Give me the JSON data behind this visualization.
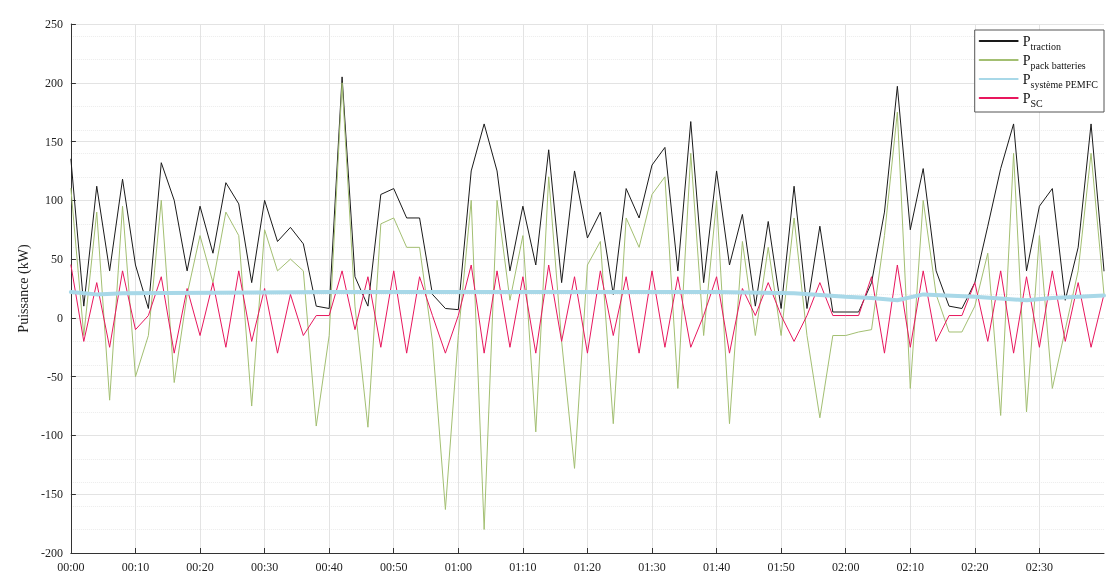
{
  "chart_data": {
    "type": "line",
    "ylabel": "Puissance (kW)",
    "x": [
      0,
      0.0333,
      0.0667,
      0.1,
      0.1333,
      0.1667,
      0.2,
      0.2333,
      0.2667,
      0.3,
      0.3333,
      0.3667,
      0.4,
      0.4333,
      0.4667,
      0.5,
      0.5333,
      0.5667,
      0.6,
      0.6333,
      0.6667,
      0.7,
      0.7333,
      0.7667,
      0.8,
      0.8333,
      0.8667,
      0.9,
      0.9333,
      0.9667,
      1,
      1.0333,
      1.0667,
      1.1,
      1.1333,
      1.1667,
      1.2,
      1.2333,
      1.2667,
      1.3,
      1.3333,
      1.3667,
      1.4,
      1.4333,
      1.4667,
      1.5,
      1.5333,
      1.5667,
      1.6,
      1.6333,
      1.6667,
      1.7,
      1.7333,
      1.7667,
      1.8,
      1.8333,
      1.8667,
      1.9,
      1.9333,
      1.9667,
      2,
      2.0333,
      2.0667,
      2.1,
      2.1333,
      2.1667,
      2.2,
      2.2333,
      2.2667,
      2.3,
      2.3333,
      2.3667,
      2.4,
      2.4333,
      2.4667,
      2.5,
      2.5333,
      2.5667,
      2.6,
      2.6333,
      2.6667
    ],
    "series": [
      {
        "name": "P$_{traction}$",
        "color": "#1a1a1a",
        "values": [
          135,
          10,
          112,
          40,
          118,
          45,
          8,
          132,
          100,
          40,
          95,
          55,
          115,
          97,
          30,
          100,
          65,
          77,
          63,
          10,
          8,
          205,
          35,
          10,
          105,
          110,
          85,
          85,
          20,
          8,
          7,
          125,
          165,
          125,
          40,
          95,
          45,
          143,
          30,
          125,
          68,
          90,
          20,
          110,
          85,
          130,
          145,
          40,
          167,
          30,
          125,
          45,
          88,
          10,
          82,
          8,
          112,
          8,
          78,
          5,
          5,
          5,
          30,
          90,
          197,
          75,
          127,
          40,
          10,
          8,
          30,
          78,
          127,
          165,
          40,
          95,
          110,
          15,
          60,
          165,
          40
        ]
      },
      {
        "name": "P$_{pack batteries}$",
        "color": "#a3bf72",
        "values": [
          110,
          -15,
          90,
          -70,
          95,
          -50,
          -15,
          100,
          -55,
          20,
          70,
          30,
          90,
          70,
          -75,
          75,
          40,
          50,
          40,
          -92,
          -15,
          200,
          10,
          -93,
          80,
          85,
          60,
          60,
          -20,
          -163,
          -15,
          100,
          -180,
          100,
          15,
          70,
          -97,
          120,
          -20,
          -128,
          45,
          65,
          -90,
          85,
          60,
          105,
          120,
          -60,
          140,
          -15,
          100,
          -90,
          65,
          -15,
          60,
          -15,
          85,
          -15,
          -85,
          -15,
          -15,
          -12,
          -10,
          70,
          175,
          -60,
          100,
          20,
          -12,
          -12,
          10,
          55,
          -83,
          140,
          -80,
          70,
          -60,
          -10,
          40,
          140,
          20
        ]
      },
      {
        "name": "P$_{système PEMFC}$",
        "color": "#a8d8e8",
        "x": [
          0,
          0.0667,
          0.1333,
          0.6667,
          1,
          1.6667,
          1.8667,
          2,
          2.0667,
          2.1333,
          2.2,
          2.3333,
          2.4667,
          2.5333,
          2.6667
        ],
        "values": [
          22,
          20,
          21,
          22,
          22,
          22,
          21,
          18,
          17,
          15,
          20,
          18,
          15,
          17,
          19
        ]
      },
      {
        "name": "P$_{SC}$",
        "color": "#e8175d",
        "values": [
          45,
          -20,
          30,
          -25,
          40,
          -10,
          2,
          35,
          -30,
          25,
          -15,
          30,
          -25,
          40,
          -20,
          25,
          -30,
          20,
          -15,
          2,
          2,
          40,
          -10,
          35,
          -25,
          40,
          -30,
          35,
          2,
          -30,
          2,
          45,
          -30,
          40,
          -25,
          35,
          -30,
          45,
          -20,
          35,
          -30,
          40,
          -15,
          35,
          -30,
          40,
          -25,
          35,
          -25,
          2,
          35,
          -30,
          25,
          2,
          30,
          2,
          -20,
          2,
          30,
          2,
          2,
          2,
          35,
          -30,
          45,
          -25,
          40,
          -20,
          2,
          2,
          30,
          -20,
          40,
          -30,
          35,
          -25,
          40,
          -20,
          30,
          -25,
          20
        ]
      }
    ],
    "xlim": [
      0,
      2.6667
    ],
    "xticks": [
      {
        "value": 0,
        "label": "00:00"
      },
      {
        "value": 0.1667,
        "label": "00:10"
      },
      {
        "value": 0.3333,
        "label": "00:20"
      },
      {
        "value": 0.5,
        "label": "00:30"
      },
      {
        "value": 0.6667,
        "label": "00:40"
      },
      {
        "value": 0.8333,
        "label": "00:50"
      },
      {
        "value": 1,
        "label": "01:00"
      },
      {
        "value": 1.1667,
        "label": "01:10"
      },
      {
        "value": 1.3333,
        "label": "01:20"
      },
      {
        "value": 1.5,
        "label": "01:30"
      },
      {
        "value": 1.6667,
        "label": "01:40"
      },
      {
        "value": 1.8333,
        "label": "01:50"
      },
      {
        "value": 2,
        "label": "02:00"
      },
      {
        "value": 2.1667,
        "label": "02:10"
      },
      {
        "value": 2.3333,
        "label": "02:20"
      },
      {
        "value": 2.5,
        "label": "02:30"
      }
    ],
    "ylim": [
      -200,
      250
    ],
    "yticks": [
      -200,
      -150,
      -100,
      -50,
      0,
      50,
      100,
      150,
      200,
      250
    ],
    "grid": true,
    "legend": "top right",
    "marker": "none",
    "line_style": "solid"
  }
}
